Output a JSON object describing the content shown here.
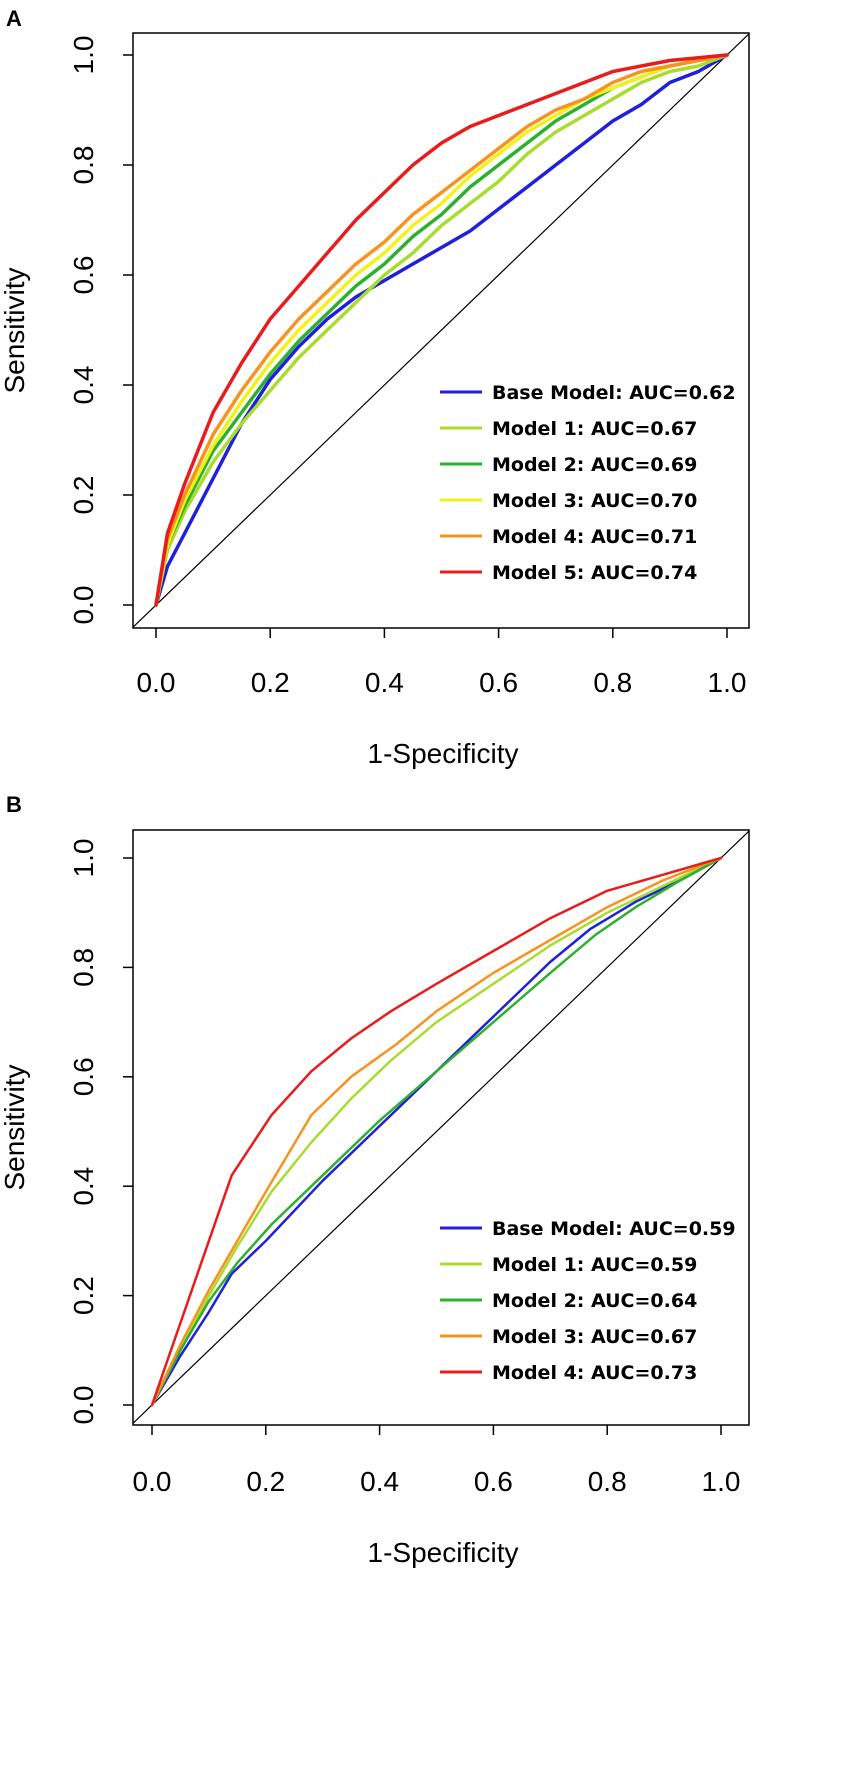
{
  "chart_data": [
    {
      "panel_label": "A",
      "type": "line",
      "xlabel": "1-Specificity",
      "ylabel": "Sensitivity",
      "xlim": [
        0,
        1
      ],
      "ylim": [
        0,
        1
      ],
      "xticks": [
        "0.0",
        "0.2",
        "0.4",
        "0.6",
        "0.8",
        "1.0"
      ],
      "yticks": [
        "0.0",
        "0.2",
        "0.4",
        "0.6",
        "0.8",
        "1.0"
      ],
      "legend_position": "bottom-right",
      "diagonal_reference": true,
      "series": [
        {
          "name": "Base Model: AUC=0.62",
          "color": "#1f1fdc",
          "x": [
            0,
            0.02,
            0.05,
            0.1,
            0.15,
            0.2,
            0.25,
            0.3,
            0.35,
            0.4,
            0.45,
            0.5,
            0.55,
            0.6,
            0.65,
            0.7,
            0.75,
            0.8,
            0.85,
            0.9,
            0.95,
            1.0
          ],
          "y": [
            0,
            0.07,
            0.13,
            0.23,
            0.33,
            0.41,
            0.47,
            0.52,
            0.56,
            0.59,
            0.62,
            0.65,
            0.68,
            0.72,
            0.76,
            0.8,
            0.84,
            0.88,
            0.91,
            0.95,
            0.97,
            1.0
          ]
        },
        {
          "name": "Model 1: AUC=0.67",
          "color": "#a8dc2e",
          "x": [
            0,
            0.02,
            0.05,
            0.1,
            0.15,
            0.2,
            0.25,
            0.3,
            0.35,
            0.4,
            0.45,
            0.5,
            0.55,
            0.6,
            0.65,
            0.7,
            0.75,
            0.8,
            0.85,
            0.9,
            0.95,
            1.0
          ],
          "y": [
            0,
            0.1,
            0.17,
            0.26,
            0.33,
            0.39,
            0.45,
            0.5,
            0.55,
            0.6,
            0.64,
            0.69,
            0.73,
            0.77,
            0.82,
            0.86,
            0.89,
            0.92,
            0.95,
            0.97,
            0.98,
            1.0
          ]
        },
        {
          "name": "Model 2: AUC=0.69",
          "color": "#2db02d",
          "x": [
            0,
            0.02,
            0.05,
            0.1,
            0.15,
            0.2,
            0.25,
            0.3,
            0.35,
            0.4,
            0.45,
            0.5,
            0.55,
            0.6,
            0.65,
            0.7,
            0.75,
            0.8,
            0.85,
            0.9,
            0.95,
            1.0
          ],
          "y": [
            0,
            0.11,
            0.18,
            0.28,
            0.35,
            0.42,
            0.48,
            0.53,
            0.58,
            0.62,
            0.67,
            0.71,
            0.76,
            0.8,
            0.84,
            0.88,
            0.91,
            0.94,
            0.96,
            0.98,
            0.99,
            1.0
          ]
        },
        {
          "name": "Model 3: AUC=0.70",
          "color": "#f2f21a",
          "x": [
            0,
            0.02,
            0.05,
            0.1,
            0.15,
            0.2,
            0.25,
            0.3,
            0.35,
            0.4,
            0.45,
            0.5,
            0.55,
            0.6,
            0.65,
            0.7,
            0.75,
            0.8,
            0.85,
            0.9,
            0.95,
            1.0
          ],
          "y": [
            0,
            0.11,
            0.19,
            0.29,
            0.37,
            0.44,
            0.5,
            0.55,
            0.6,
            0.64,
            0.69,
            0.73,
            0.78,
            0.82,
            0.86,
            0.89,
            0.92,
            0.94,
            0.96,
            0.98,
            0.99,
            1.0
          ]
        },
        {
          "name": "Model 4: AUC=0.71",
          "color": "#f7931e",
          "x": [
            0,
            0.02,
            0.05,
            0.1,
            0.15,
            0.2,
            0.25,
            0.3,
            0.35,
            0.4,
            0.45,
            0.5,
            0.55,
            0.6,
            0.65,
            0.7,
            0.75,
            0.8,
            0.85,
            0.9,
            0.95,
            1.0
          ],
          "y": [
            0,
            0.12,
            0.2,
            0.31,
            0.39,
            0.46,
            0.52,
            0.57,
            0.62,
            0.66,
            0.71,
            0.75,
            0.79,
            0.83,
            0.87,
            0.9,
            0.92,
            0.95,
            0.97,
            0.98,
            0.99,
            1.0
          ]
        },
        {
          "name": "Model 5: AUC=0.74",
          "color": "#e81c1c",
          "x": [
            0,
            0.02,
            0.05,
            0.1,
            0.15,
            0.2,
            0.25,
            0.3,
            0.35,
            0.4,
            0.45,
            0.5,
            0.55,
            0.6,
            0.65,
            0.7,
            0.75,
            0.8,
            0.85,
            0.9,
            0.95,
            1.0
          ],
          "y": [
            0,
            0.13,
            0.22,
            0.35,
            0.44,
            0.52,
            0.58,
            0.64,
            0.7,
            0.75,
            0.8,
            0.84,
            0.87,
            0.89,
            0.91,
            0.93,
            0.95,
            0.97,
            0.98,
            0.99,
            0.995,
            1.0
          ]
        }
      ]
    },
    {
      "panel_label": "B",
      "type": "line",
      "xlabel": "1-Specificity",
      "ylabel": "Sensitivity",
      "xlim": [
        0,
        1
      ],
      "ylim": [
        0,
        1
      ],
      "xticks": [
        "0.0",
        "0.2",
        "0.4",
        "0.6",
        "0.8",
        "1.0"
      ],
      "yticks": [
        "0.0",
        "0.2",
        "0.4",
        "0.6",
        "0.8",
        "1.0"
      ],
      "legend_position": "bottom-right",
      "diagonal_reference": true,
      "series": [
        {
          "name": "Base Model: AUC=0.59",
          "color": "#1f1fdc",
          "x": [
            0,
            0.05,
            0.1,
            0.14,
            0.2,
            0.3,
            0.4,
            0.5,
            0.6,
            0.7,
            0.77,
            0.85,
            0.93,
            1.0
          ],
          "y": [
            0,
            0.09,
            0.17,
            0.24,
            0.3,
            0.41,
            0.51,
            0.61,
            0.71,
            0.81,
            0.87,
            0.92,
            0.96,
            1.0
          ]
        },
        {
          "name": "Model 1: AUC=0.59",
          "color": "#a8dc2e",
          "x": [
            0,
            0.05,
            0.1,
            0.15,
            0.21,
            0.28,
            0.35,
            0.42,
            0.5,
            0.6,
            0.7,
            0.8,
            0.9,
            1.0
          ],
          "y": [
            0,
            0.1,
            0.2,
            0.29,
            0.39,
            0.48,
            0.56,
            0.63,
            0.7,
            0.77,
            0.84,
            0.9,
            0.95,
            1.0
          ]
        },
        {
          "name": "Model 2: AUC=0.64",
          "color": "#2db02d",
          "x": [
            0,
            0.05,
            0.1,
            0.15,
            0.21,
            0.3,
            0.4,
            0.5,
            0.6,
            0.7,
            0.78,
            0.85,
            0.93,
            1.0
          ],
          "y": [
            0,
            0.1,
            0.19,
            0.26,
            0.33,
            0.42,
            0.52,
            0.61,
            0.7,
            0.79,
            0.86,
            0.91,
            0.96,
            1.0
          ]
        },
        {
          "name": "Model 3: AUC=0.67",
          "color": "#f7931e",
          "x": [
            0,
            0.05,
            0.1,
            0.15,
            0.2,
            0.28,
            0.35,
            0.43,
            0.5,
            0.6,
            0.7,
            0.8,
            0.9,
            1.0
          ],
          "y": [
            0,
            0.11,
            0.21,
            0.3,
            0.39,
            0.53,
            0.6,
            0.66,
            0.72,
            0.79,
            0.85,
            0.91,
            0.96,
            1.0
          ]
        },
        {
          "name": "Model 4: AUC=0.73",
          "color": "#e81c1c",
          "x": [
            0,
            0.05,
            0.1,
            0.14,
            0.21,
            0.28,
            0.35,
            0.42,
            0.5,
            0.6,
            0.7,
            0.8,
            0.9,
            1.0
          ],
          "y": [
            0,
            0.15,
            0.3,
            0.42,
            0.53,
            0.61,
            0.67,
            0.72,
            0.77,
            0.83,
            0.89,
            0.94,
            0.97,
            1.0
          ]
        }
      ]
    }
  ]
}
